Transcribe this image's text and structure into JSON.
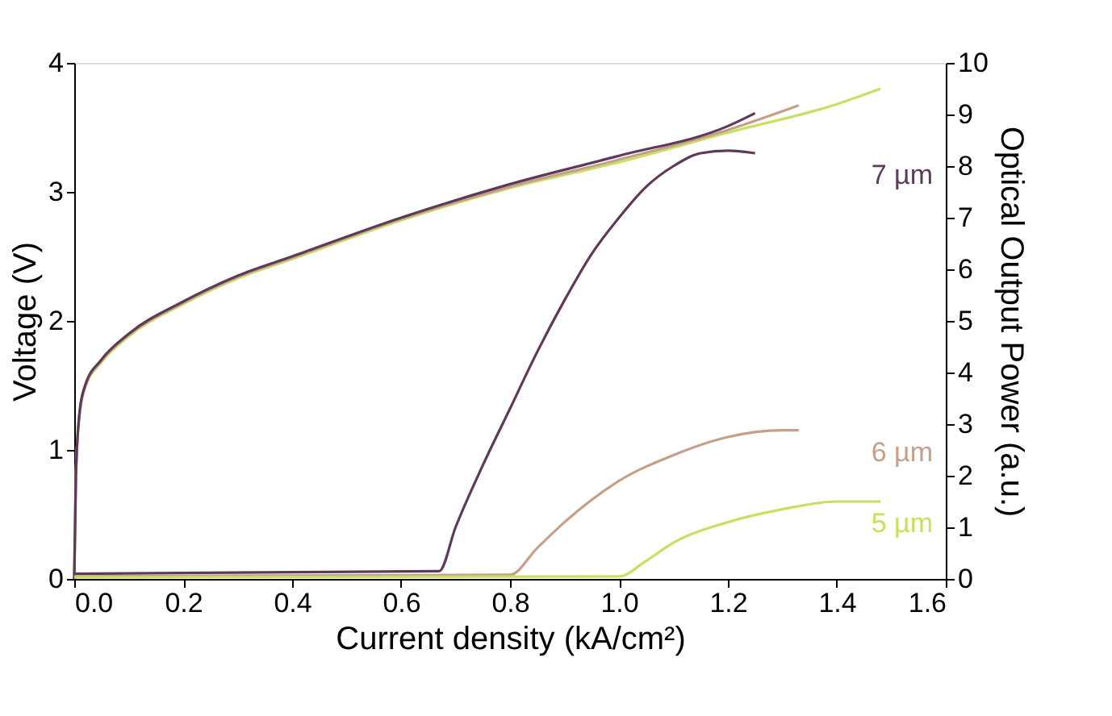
{
  "chart_data": {
    "type": "line",
    "xlabel": "Current density (kA/cm²)",
    "ylabel": "Voltage (V)",
    "y2label": "Optical Output Power (a.u.)",
    "xlim": [
      0,
      1.6
    ],
    "xticks": [
      {
        "value": 0,
        "label": "0.0"
      },
      0.2,
      0.4,
      0.6,
      0.8,
      {
        "value": 1,
        "label": "1.0"
      },
      1.2,
      1.4,
      1.6
    ],
    "ylim": [
      0,
      4
    ],
    "yticks": [
      0,
      1,
      2,
      3,
      4
    ],
    "y2lim": [
      0,
      10
    ],
    "y2ticks": [
      0,
      1,
      2,
      3,
      4,
      5,
      6,
      7,
      8,
      9,
      10
    ],
    "grid": false,
    "legend": false,
    "series": [
      {
        "color": "#c8e060",
        "x": [
          0,
          0.003,
          0.01,
          0.02,
          0.05,
          0.1,
          0.2,
          0.3,
          0.4,
          0.6,
          0.8,
          1.0,
          1.2,
          1.4,
          1.48
        ],
        "values": [
          0,
          0.8,
          1.28,
          1.48,
          1.68,
          1.88,
          2.13,
          2.33,
          2.48,
          2.78,
          3.03,
          3.23,
          3.46,
          3.68,
          3.8
        ]
      },
      {
        "color": "#c4a08a",
        "x": [
          0,
          0.003,
          0.01,
          0.02,
          0.05,
          0.1,
          0.2,
          0.3,
          0.4,
          0.6,
          0.8,
          1.0,
          1.2,
          1.33
        ],
        "values": [
          0,
          0.8,
          1.29,
          1.49,
          1.69,
          1.89,
          2.14,
          2.34,
          2.49,
          2.79,
          3.04,
          3.25,
          3.48,
          3.67
        ]
      },
      {
        "color": "#5e3a5a",
        "x": [
          0,
          0.003,
          0.01,
          0.02,
          0.05,
          0.1,
          0.2,
          0.3,
          0.4,
          0.6,
          0.8,
          1.0,
          1.2,
          1.25
        ],
        "values": [
          0,
          0.8,
          1.3,
          1.5,
          1.7,
          1.9,
          2.15,
          2.35,
          2.5,
          2.8,
          3.06,
          3.28,
          3.51,
          3.61
        ]
      },
      {
        "name": "7 µm",
        "axis": "y2",
        "color": "#5e3a5a",
        "x": [
          0,
          0.67,
          0.7,
          0.75,
          0.8,
          0.85,
          0.9,
          0.95,
          1.0,
          1.05,
          1.1,
          1.15,
          1.2,
          1.25
        ],
        "values": [
          0.1,
          0.15,
          1.0,
          2.2,
          3.3,
          4.4,
          5.4,
          6.3,
          7.0,
          7.6,
          8.0,
          8.25,
          8.3,
          8.25
        ]
      },
      {
        "name": "6 µm",
        "axis": "y2",
        "color": "#c4a08a",
        "x": [
          0,
          0.8,
          0.85,
          0.9,
          1.0,
          1.1,
          1.2,
          1.3,
          1.33
        ],
        "values": [
          0.05,
          0.08,
          0.6,
          1.1,
          1.9,
          2.4,
          2.75,
          2.88,
          2.88
        ]
      },
      {
        "name": "5 µm",
        "axis": "y2",
        "color": "#c8e060",
        "x": [
          0,
          1.0,
          1.05,
          1.1,
          1.2,
          1.3,
          1.4,
          1.48
        ],
        "values": [
          0.03,
          0.05,
          0.35,
          0.7,
          1.1,
          1.35,
          1.5,
          1.5
        ]
      }
    ]
  }
}
